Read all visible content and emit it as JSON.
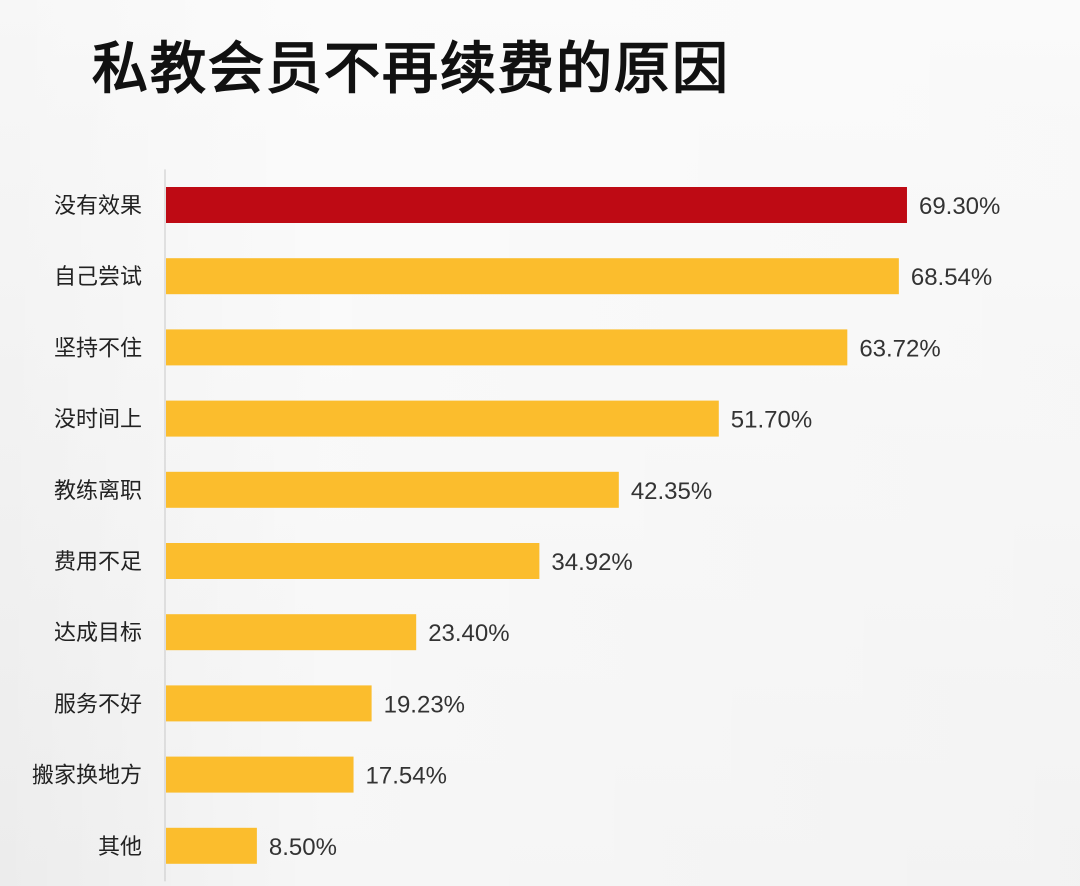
{
  "title": "私教会员不再续费的原因",
  "colors": {
    "highlight": "#be0a14",
    "bar": "#fbbd2d",
    "axis": "#c8c8c8"
  },
  "chart_data": {
    "type": "bar",
    "orientation": "horizontal",
    "title": "私教会员不再续费的原因",
    "categories": [
      "没有效果",
      "自己尝试",
      "坚持不住",
      "没时间上",
      "教练离职",
      "费用不足",
      "达成目标",
      "服务不好",
      "搬家换地方",
      "其他"
    ],
    "values": [
      69.3,
      68.54,
      63.72,
      51.7,
      42.35,
      34.92,
      23.4,
      19.23,
      17.54,
      8.5
    ],
    "value_labels": [
      "69.30%",
      "68.54%",
      "63.72%",
      "51.70%",
      "42.35%",
      "34.92%",
      "23.40%",
      "19.23%",
      "17.54%",
      "8.50%"
    ],
    "highlight_index": 0,
    "xlim": [
      0,
      78
    ],
    "grid": false,
    "legend": false
  }
}
